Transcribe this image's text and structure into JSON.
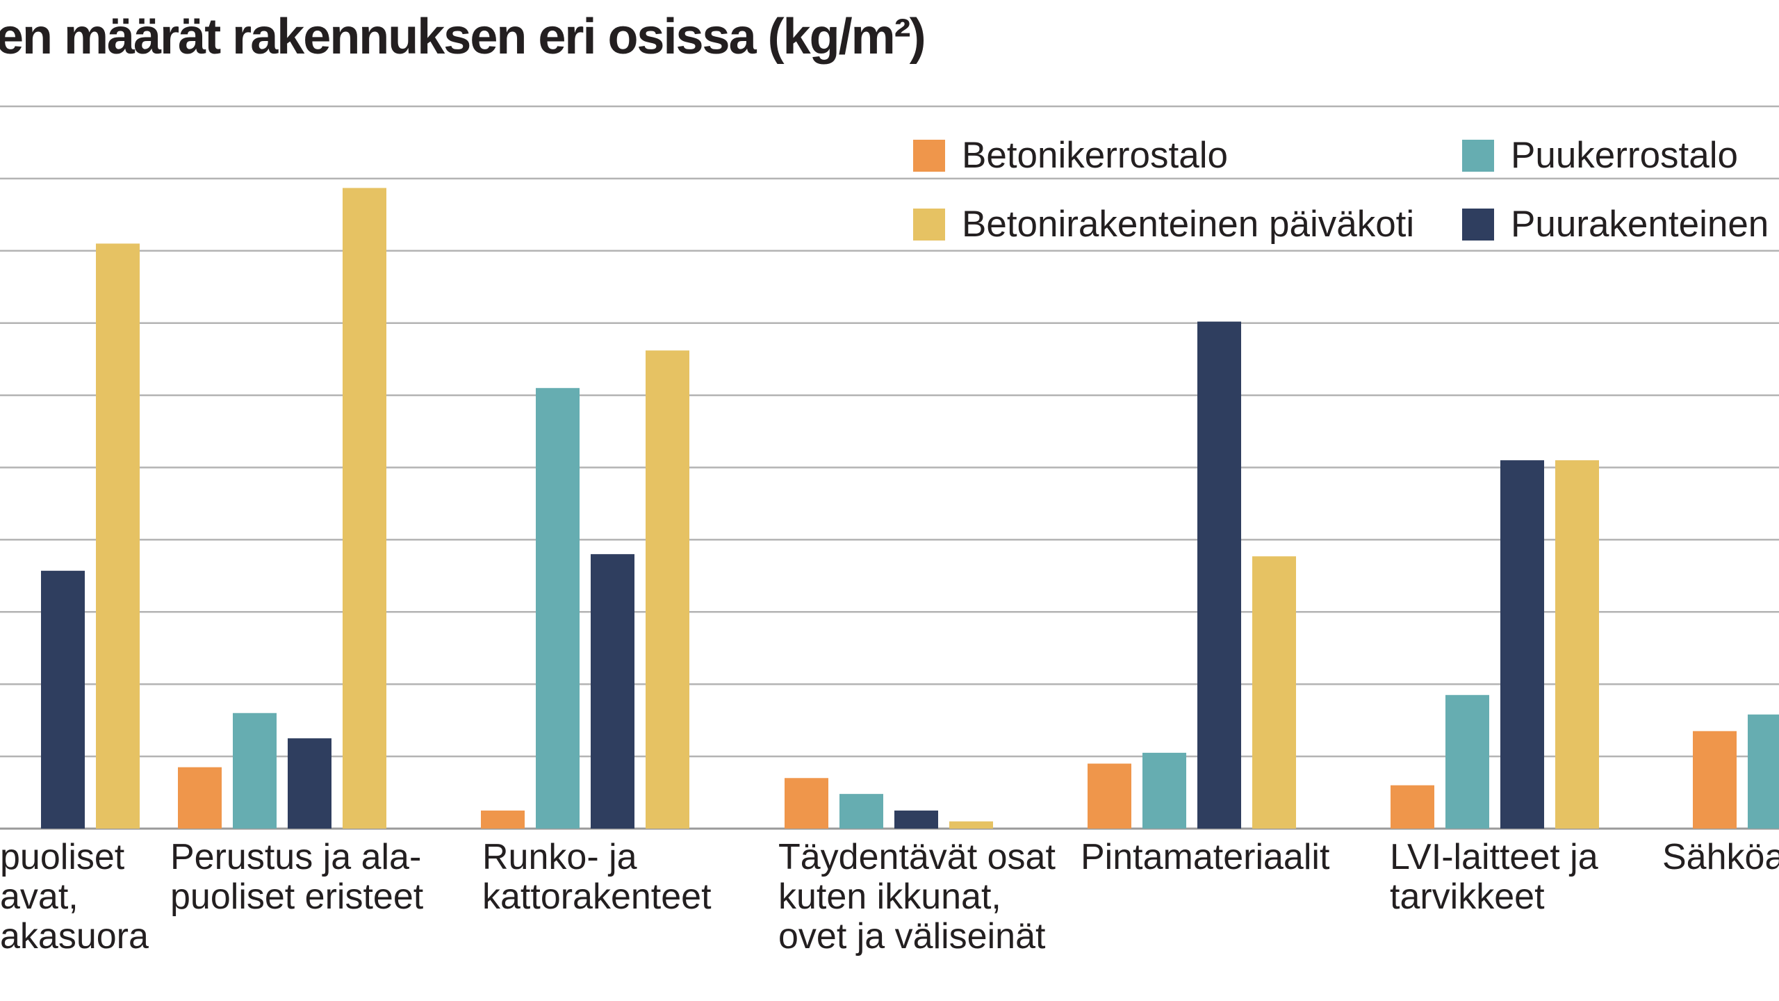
{
  "chart_data": {
    "type": "bar",
    "title": "en määrät rakennuksen eri osissa (kg/m²)",
    "xlabel": "",
    "ylabel": "",
    "ylim": [
      0,
      10
    ],
    "grid": true,
    "legend_position": "top-right",
    "categories": [
      "puoliset\navat,\nakasuora",
      "Perustus ja ala-\npuoliset eristeet",
      "Runko- ja\nkattorakenteet",
      "Täydentävät osat\nkuten ikkunat,\novet ja väliseinät",
      "Pintamateriaalit",
      "LVI-laitteet ja\ntarvikkeet",
      "Sähköa"
    ],
    "series": [
      {
        "name": "Betonikerrostalo",
        "color": "#ef964b",
        "values": [
          null,
          0.85,
          0.25,
          0.7,
          0.9,
          0.6,
          1.35
        ]
      },
      {
        "name": "Puukerrostalo",
        "color": "#66adb1",
        "values": [
          null,
          1.6,
          6.1,
          0.48,
          1.05,
          1.85,
          1.58
        ]
      },
      {
        "name": "Puurakenteinen p",
        "color": "#2f3e5f",
        "values": [
          3.57,
          1.25,
          3.8,
          0.25,
          7.02,
          5.1,
          null
        ]
      },
      {
        "name": "Betonirakenteinen päiväkoti",
        "color": "#e6c263",
        "values": [
          8.1,
          8.87,
          6.62,
          0.1,
          3.77,
          5.1,
          null
        ]
      }
    ],
    "legend_order": [
      0,
      1,
      3,
      2
    ]
  }
}
